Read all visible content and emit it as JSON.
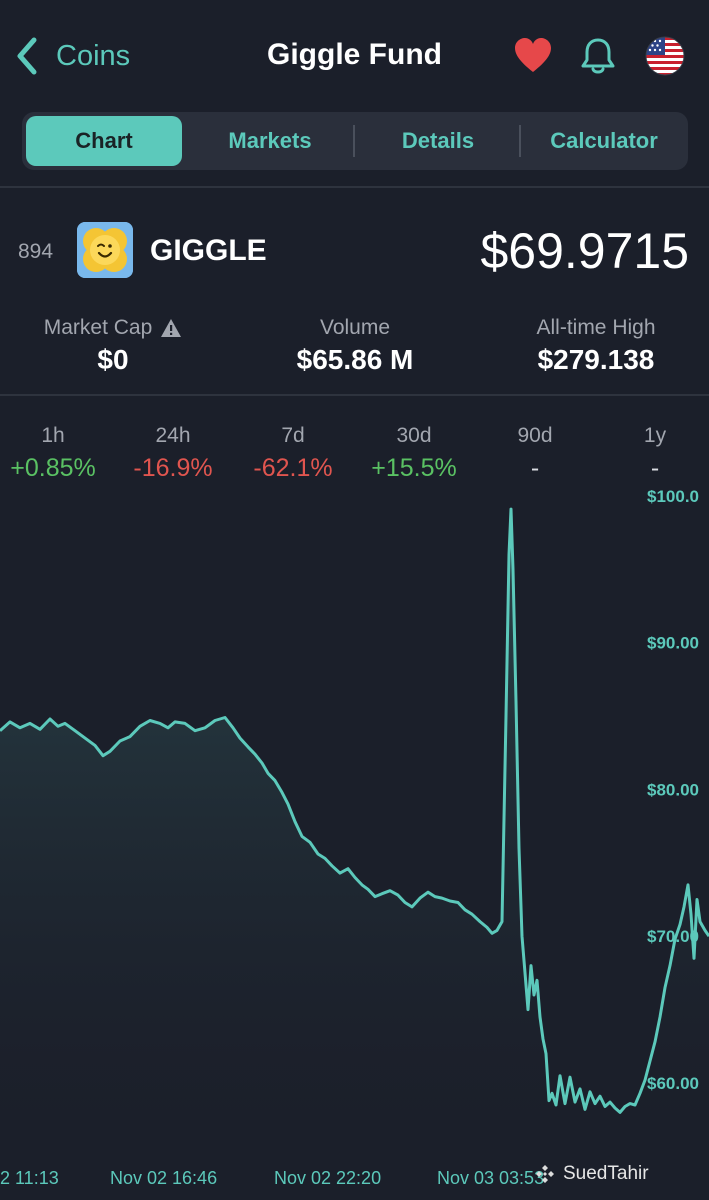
{
  "header": {
    "back_label": "Coins",
    "title": "Giggle Fund"
  },
  "tabs": [
    {
      "label": "Chart",
      "active": true
    },
    {
      "label": "Markets",
      "active": false
    },
    {
      "label": "Details",
      "active": false
    },
    {
      "label": "Calculator",
      "active": false
    }
  ],
  "coin": {
    "rank": "894",
    "symbol": "GIGGLE",
    "price": "$69.9715"
  },
  "stats": {
    "market_cap": {
      "label": "Market Cap",
      "value": "$0"
    },
    "volume": {
      "label": "Volume",
      "value": "$65.86 M"
    },
    "ath": {
      "label": "All-time High",
      "value": "$279.138"
    }
  },
  "performance": [
    {
      "label": "1h",
      "value": "+0.85%",
      "trend": "up"
    },
    {
      "label": "24h",
      "value": "-16.9%",
      "trend": "down"
    },
    {
      "label": "7d",
      "value": "-62.1%",
      "trend": "down"
    },
    {
      "label": "30d",
      "value": "+15.5%",
      "trend": "up"
    },
    {
      "label": "90d",
      "value": "-",
      "trend": "neutral"
    },
    {
      "label": "1y",
      "value": "-",
      "trend": "neutral"
    }
  ],
  "colors": {
    "accent": "#5cc9bb",
    "positive": "#5ac163",
    "negative": "#e0554f",
    "background": "#1b1f2a"
  },
  "watermark": "SuedTahir",
  "chart_data": {
    "type": "area",
    "y_ticks": [
      "$100.0",
      "$90.00",
      "$80.00",
      "$70.00",
      "$60.00"
    ],
    "ylim": [
      56.8,
      100.4
    ],
    "x_ticks": [
      "2 11:13",
      "Nov 02 16:46",
      "Nov 02 22:20",
      "Nov 03 03:53"
    ],
    "series": [
      {
        "x": [
          0,
          10,
          20,
          30,
          40,
          50,
          58,
          65,
          75,
          85,
          95,
          103,
          110,
          120,
          130,
          140,
          150,
          160,
          168,
          175,
          185,
          195,
          205,
          215,
          225,
          233,
          240,
          248,
          255,
          262,
          268,
          275,
          282,
          288,
          295,
          302,
          310,
          318,
          325,
          332,
          340,
          348,
          355,
          362,
          368,
          375,
          382,
          390,
          398,
          405,
          412,
          420,
          428,
          435,
          442,
          450,
          458,
          465,
          472,
          480,
          487,
          492,
          497,
          502,
          506,
          509,
          511,
          513,
          516,
          519,
          522,
          525,
          528,
          531,
          534,
          537,
          540,
          543,
          546,
          549,
          552,
          556,
          560,
          565,
          570,
          575,
          580,
          585,
          590,
          595,
          600,
          605,
          610,
          615,
          620,
          625,
          630,
          635,
          640,
          645,
          650,
          655,
          660,
          665,
          670,
          675,
          680,
          684,
          688,
          691,
          694,
          697,
          700,
          705,
          709
        ],
        "values": [
          84.0,
          84.6,
          84.2,
          84.5,
          84.1,
          84.8,
          84.3,
          84.5,
          84.0,
          83.5,
          83.0,
          82.3,
          82.6,
          83.3,
          83.6,
          84.3,
          84.7,
          84.5,
          84.2,
          84.6,
          84.5,
          84.0,
          84.2,
          84.7,
          84.9,
          84.2,
          83.5,
          82.9,
          82.4,
          81.8,
          81.1,
          80.6,
          79.8,
          79.0,
          77.8,
          76.8,
          76.4,
          75.6,
          75.3,
          74.8,
          74.3,
          74.6,
          74.0,
          73.5,
          73.2,
          72.7,
          72.9,
          73.1,
          72.8,
          72.3,
          72.0,
          72.6,
          73.0,
          72.7,
          72.6,
          72.4,
          72.3,
          71.8,
          71.5,
          71.0,
          70.6,
          70.2,
          70.4,
          71.0,
          85.0,
          96.0,
          99.1,
          95.0,
          86.0,
          76.0,
          70.0,
          67.5,
          65.0,
          68.0,
          66.0,
          67.0,
          64.5,
          63.0,
          62.0,
          58.8,
          59.3,
          58.5,
          60.5,
          58.6,
          60.4,
          58.7,
          59.6,
          58.2,
          59.4,
          58.6,
          59.1,
          58.4,
          58.7,
          58.3,
          58.0,
          58.4,
          58.6,
          58.5,
          59.3,
          60.2,
          61.5,
          62.8,
          64.5,
          66.5,
          68.0,
          69.8,
          70.8,
          72.0,
          73.5,
          71.5,
          68.5,
          72.5,
          71.0,
          70.4,
          70.0
        ]
      }
    ]
  }
}
